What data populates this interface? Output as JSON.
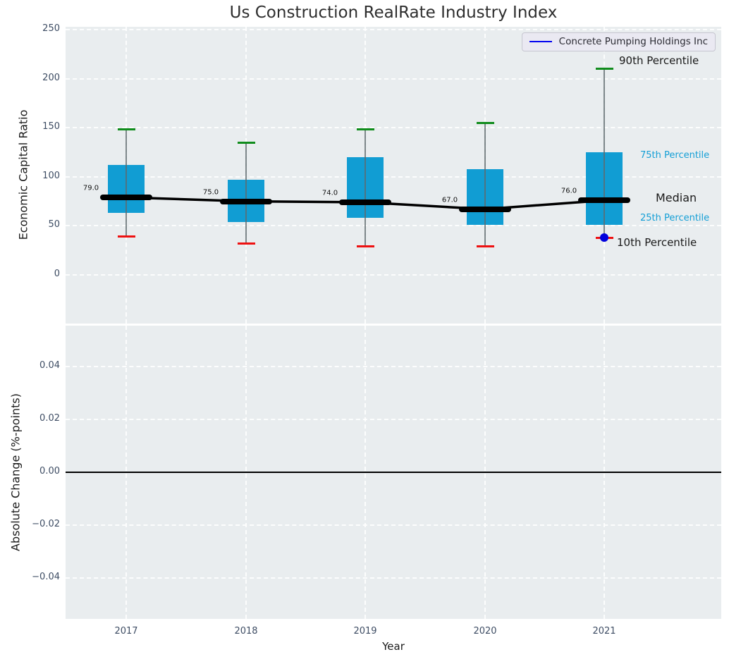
{
  "title": "Us Construction RealRate Industry Index",
  "legend": {
    "label": "Concrete Pumping Holdings Inc"
  },
  "colors": {
    "box_fill": "#119dd3",
    "whisker": "#5f6a6e",
    "cap_90th": "#108c1c",
    "cap_10th": "#ee1111",
    "median_line": "#000000",
    "company_marker": "#0000dd",
    "legend_line": "#0202f0",
    "annotation_cyan": "#149fd6",
    "annotation_dark": "#1a1a1a",
    "tick_label": "#3d4c63",
    "panel_background": "#e9edef",
    "grid": "#ffffff"
  },
  "chart_data": [
    {
      "type": "boxplot",
      "title": "Us Construction RealRate Industry Index",
      "ylabel": "Economic Capital Ratio",
      "xlabel": "",
      "ylim": [
        -50,
        253
      ],
      "grid": true,
      "legend_position": "upper right",
      "legend_entries": [
        "Concrete Pumping Holdings Inc"
      ],
      "categories": [
        "2017",
        "2018",
        "2019",
        "2020",
        "2021"
      ],
      "yticks": [
        {
          "value": 0,
          "label": "0"
        },
        {
          "value": 50,
          "label": "50"
        },
        {
          "value": 100,
          "label": "100"
        },
        {
          "value": 150,
          "label": "150"
        },
        {
          "value": 200,
          "label": "200"
        },
        {
          "value": 250,
          "label": "250"
        }
      ],
      "boxes": [
        {
          "year": "2017",
          "p10": 39,
          "p25": 63,
          "median": 79,
          "p75": 112,
          "p90": 148,
          "median_label": "79.0"
        },
        {
          "year": "2018",
          "p10": 32,
          "p25": 54,
          "median": 75,
          "p75": 97,
          "p90": 135,
          "median_label": "75.0"
        },
        {
          "year": "2019",
          "p10": 29,
          "p25": 58,
          "median": 74,
          "p75": 120,
          "p90": 148,
          "median_label": "74.0"
        },
        {
          "year": "2020",
          "p10": 29,
          "p25": 51,
          "median": 67,
          "p75": 108,
          "p90": 155,
          "median_label": "67.0"
        },
        {
          "year": "2021",
          "p10": 38,
          "p25": 51,
          "median": 76,
          "p75": 125,
          "p90": 210,
          "median_label": "76.0"
        }
      ],
      "median_series": [
        79,
        75,
        74,
        67,
        76
      ],
      "company_series": {
        "name": "Concrete Pumping Holdings Inc",
        "points": [
          {
            "year": "2021",
            "value": 38
          }
        ]
      },
      "annotations": [
        {
          "text": "90th Percentile",
          "style": "dark"
        },
        {
          "text": "75th Percentile",
          "style": "cyan"
        },
        {
          "text": "Median",
          "style": "dark"
        },
        {
          "text": "25th Percentile",
          "style": "cyan"
        },
        {
          "text": "10th Percentile",
          "style": "dark"
        }
      ]
    },
    {
      "type": "line",
      "ylabel": "Absolute Change (%-points)",
      "xlabel": "Year",
      "ylim": [
        -0.055,
        0.055
      ],
      "grid": true,
      "categories": [
        "2017",
        "2018",
        "2019",
        "2020",
        "2021"
      ],
      "yticks": [
        {
          "value": 0.04,
          "label": "0.04"
        },
        {
          "value": 0.02,
          "label": "0.02"
        },
        {
          "value": 0,
          "label": "0.00"
        },
        {
          "value": -0.02,
          "label": "−0.02"
        },
        {
          "value": -0.04,
          "label": "−0.04"
        }
      ],
      "zero_line": 0,
      "series": []
    }
  ]
}
